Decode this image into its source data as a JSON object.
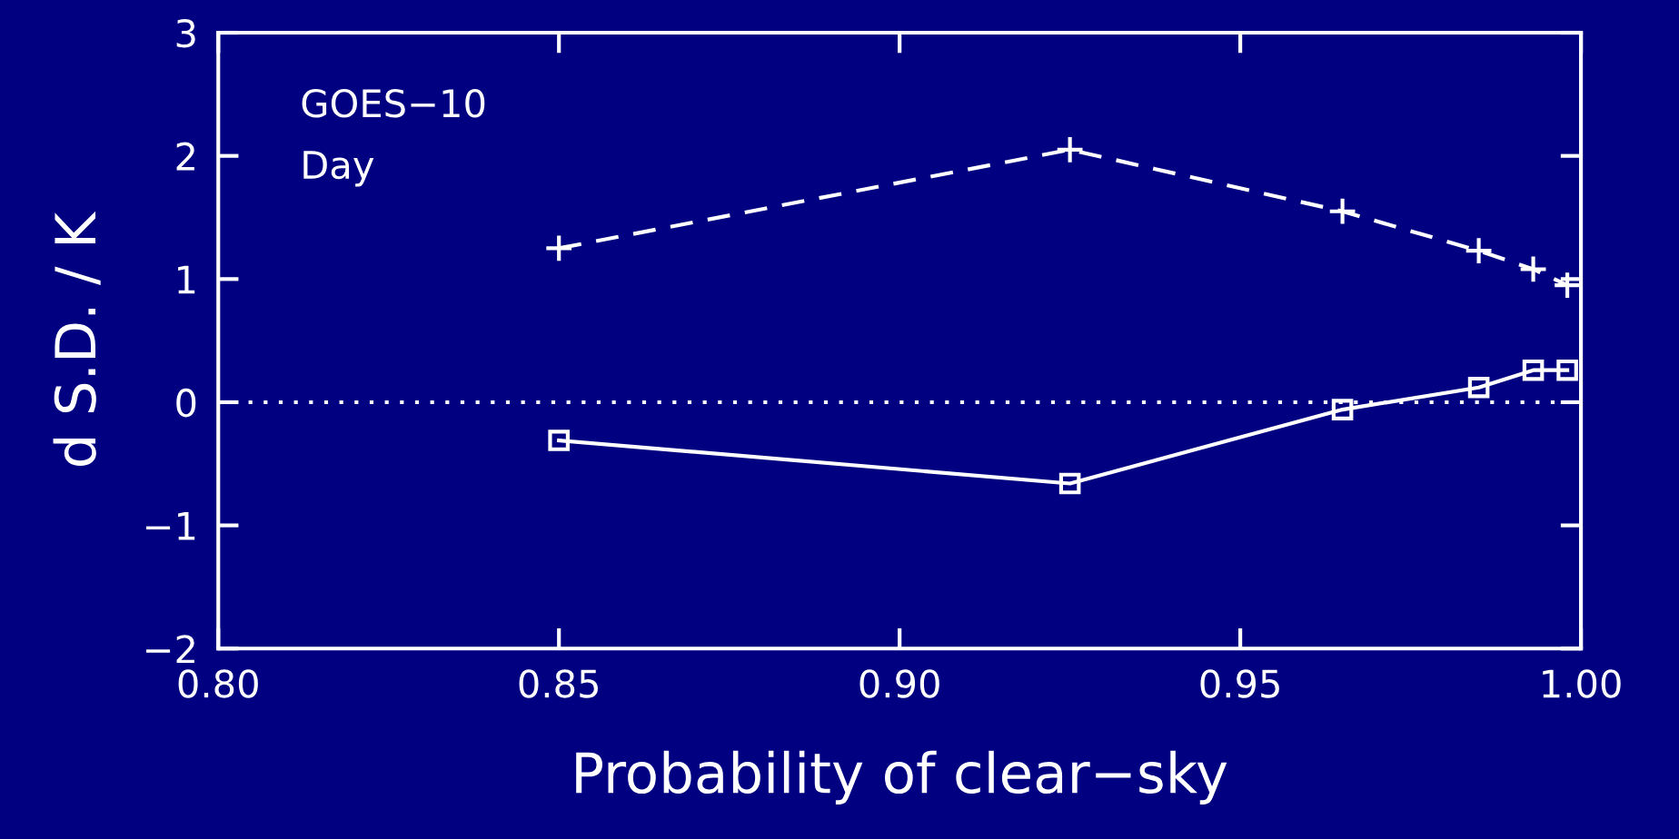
{
  "chart_data": {
    "type": "line",
    "xlabel": "Probability of clear−sky",
    "ylabel": "d S.D. / K",
    "annotations": [
      "GOES−10",
      "Day"
    ],
    "xlim": [
      0.8,
      1.0
    ],
    "xticks": [
      {
        "value": 0.8,
        "label": "0.80"
      },
      {
        "value": 0.85,
        "label": "0.85"
      },
      {
        "value": 0.9,
        "label": "0.90"
      },
      {
        "value": 0.95,
        "label": "0.95"
      },
      {
        "value": 1.0,
        "label": "1.00"
      }
    ],
    "ylim": [
      -2,
      3
    ],
    "yticks": [
      {
        "value": -2,
        "label": "−2"
      },
      {
        "value": -1,
        "label": "−1"
      },
      0,
      1,
      2,
      3
    ],
    "grid": false,
    "ref_lines": [
      {
        "axis": "y",
        "value": 0,
        "color": "#ffffff",
        "line_style": "dotted"
      }
    ],
    "series": [
      {
        "color": "#ffffff",
        "marker": "cross",
        "line_style": "dashed",
        "x": [
          0.85,
          0.925,
          0.965,
          0.985,
          0.993,
          0.998
        ],
        "values": [
          1.25,
          2.05,
          1.55,
          1.23,
          1.08,
          0.95
        ]
      },
      {
        "color": "#ffffff",
        "marker": "square",
        "line_style": "solid",
        "x": [
          0.85,
          0.925,
          0.965,
          0.985,
          0.993,
          0.998
        ],
        "values": [
          -0.31,
          -0.66,
          -0.06,
          0.12,
          0.26,
          0.26
        ]
      }
    ]
  }
}
